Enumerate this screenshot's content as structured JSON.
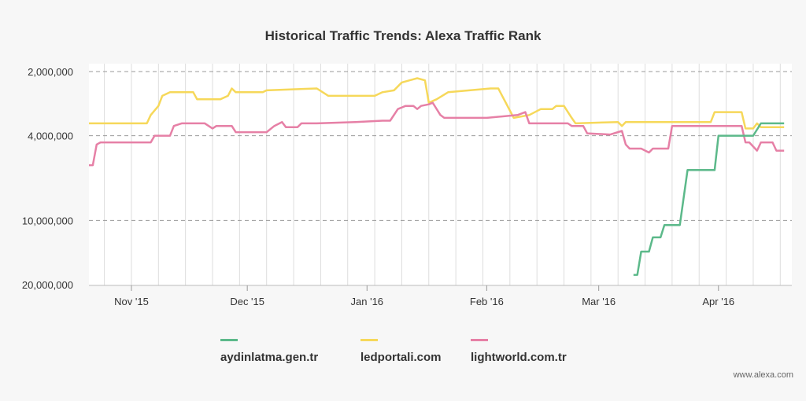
{
  "chart_data": {
    "type": "line",
    "title": "Historical Traffic Trends: Alexa Traffic Rank",
    "y_scale": "log",
    "y_reversed": true,
    "ylim": [
      2000000,
      20000000
    ],
    "y_ticks": [
      {
        "value": 2000000,
        "label": "2,000,000"
      },
      {
        "value": 4000000,
        "label": "4,000,000"
      },
      {
        "value": 10000000,
        "label": "10,000,000"
      },
      {
        "value": 20000000,
        "label": "20,000,000"
      }
    ],
    "xlim": [
      "2015-10-21",
      "2016-04-20"
    ],
    "x_ticks": [
      {
        "date": "2015-11-01",
        "label": "Nov '15"
      },
      {
        "date": "2015-12-01",
        "label": "Dec '15"
      },
      {
        "date": "2016-01-01",
        "label": "Jan '16"
      },
      {
        "date": "2016-02-01",
        "label": "Feb '16"
      },
      {
        "date": "2016-03-01",
        "label": "Mar '16"
      },
      {
        "date": "2016-04-01",
        "label": "Apr '16"
      }
    ],
    "grid": "vertical weekly lines, dashed horizontal lines at y ticks",
    "legend_position": "bottom",
    "series": [
      {
        "name": "aydinlatma.gen.tr",
        "color": "#5cb98a",
        "points": [
          [
            "2016-03-10",
            18000000
          ],
          [
            "2016-03-11",
            18000000
          ],
          [
            "2016-03-12",
            14000000
          ],
          [
            "2016-03-14",
            14000000
          ],
          [
            "2016-03-15",
            12000000
          ],
          [
            "2016-03-17",
            12000000
          ],
          [
            "2016-03-18",
            10500000
          ],
          [
            "2016-03-22",
            10500000
          ],
          [
            "2016-03-24",
            5800000
          ],
          [
            "2016-03-31",
            5800000
          ],
          [
            "2016-04-01",
            4000000
          ],
          [
            "2016-04-10",
            4000000
          ],
          [
            "2016-04-12",
            3500000
          ],
          [
            "2016-04-18",
            3500000
          ]
        ]
      },
      {
        "name": "ledportali.com",
        "color": "#f6d85a",
        "points": [
          [
            "2015-10-21",
            3500000
          ],
          [
            "2015-10-28",
            3500000
          ],
          [
            "2015-11-03",
            3500000
          ],
          [
            "2015-11-05",
            3500000
          ],
          [
            "2015-11-06",
            3200000
          ],
          [
            "2015-11-08",
            2900000
          ],
          [
            "2015-11-09",
            2600000
          ],
          [
            "2015-11-11",
            2500000
          ],
          [
            "2015-11-17",
            2500000
          ],
          [
            "2015-11-18",
            2700000
          ],
          [
            "2015-11-24",
            2700000
          ],
          [
            "2015-11-26",
            2600000
          ],
          [
            "2015-11-27",
            2400000
          ],
          [
            "2015-11-28",
            2500000
          ],
          [
            "2015-12-05",
            2500000
          ],
          [
            "2015-12-06",
            2450000
          ],
          [
            "2015-12-19",
            2400000
          ],
          [
            "2015-12-22",
            2600000
          ],
          [
            "2015-12-29",
            2600000
          ],
          [
            "2016-01-03",
            2600000
          ],
          [
            "2016-01-05",
            2500000
          ],
          [
            "2016-01-08",
            2450000
          ],
          [
            "2016-01-10",
            2250000
          ],
          [
            "2016-01-12",
            2200000
          ],
          [
            "2016-01-14",
            2150000
          ],
          [
            "2016-01-16",
            2200000
          ],
          [
            "2016-01-17",
            2800000
          ],
          [
            "2016-01-19",
            2700000
          ],
          [
            "2016-01-22",
            2500000
          ],
          [
            "2016-02-02",
            2400000
          ],
          [
            "2016-02-04",
            2400000
          ],
          [
            "2016-02-05",
            2600000
          ],
          [
            "2016-02-08",
            3300000
          ],
          [
            "2016-02-12",
            3200000
          ],
          [
            "2016-02-15",
            3000000
          ],
          [
            "2016-02-18",
            3000000
          ],
          [
            "2016-02-19",
            2900000
          ],
          [
            "2016-02-21",
            2900000
          ],
          [
            "2016-02-23",
            3300000
          ],
          [
            "2016-02-24",
            3500000
          ],
          [
            "2016-03-06",
            3450000
          ],
          [
            "2016-03-07",
            3600000
          ],
          [
            "2016-03-08",
            3450000
          ],
          [
            "2016-03-30",
            3450000
          ],
          [
            "2016-03-31",
            3100000
          ],
          [
            "2016-04-07",
            3100000
          ],
          [
            "2016-04-08",
            3700000
          ],
          [
            "2016-04-10",
            3700000
          ],
          [
            "2016-04-11",
            3500000
          ],
          [
            "2016-04-12",
            3650000
          ],
          [
            "2016-04-18",
            3650000
          ]
        ]
      },
      {
        "name": "lightworld.com.tr",
        "color": "#e680a6",
        "points": [
          [
            "2015-10-21",
            5500000
          ],
          [
            "2015-10-22",
            5500000
          ],
          [
            "2015-10-23",
            4400000
          ],
          [
            "2015-10-24",
            4300000
          ],
          [
            "2015-11-06",
            4300000
          ],
          [
            "2015-11-07",
            4000000
          ],
          [
            "2015-11-11",
            4000000
          ],
          [
            "2015-11-12",
            3600000
          ],
          [
            "2015-11-14",
            3500000
          ],
          [
            "2015-11-20",
            3500000
          ],
          [
            "2015-11-22",
            3700000
          ],
          [
            "2015-11-23",
            3600000
          ],
          [
            "2015-11-27",
            3600000
          ],
          [
            "2015-11-28",
            3850000
          ],
          [
            "2015-12-06",
            3850000
          ],
          [
            "2015-12-08",
            3600000
          ],
          [
            "2015-12-10",
            3450000
          ],
          [
            "2015-12-11",
            3650000
          ],
          [
            "2015-12-14",
            3650000
          ],
          [
            "2015-12-15",
            3500000
          ],
          [
            "2015-12-19",
            3500000
          ],
          [
            "2015-12-29",
            3450000
          ],
          [
            "2016-01-05",
            3400000
          ],
          [
            "2016-01-07",
            3400000
          ],
          [
            "2016-01-09",
            3000000
          ],
          [
            "2016-01-11",
            2900000
          ],
          [
            "2016-01-13",
            2900000
          ],
          [
            "2016-01-14",
            3000000
          ],
          [
            "2016-01-15",
            2900000
          ],
          [
            "2016-01-17",
            2850000
          ],
          [
            "2016-01-18",
            2800000
          ],
          [
            "2016-01-20",
            3200000
          ],
          [
            "2016-01-21",
            3300000
          ],
          [
            "2016-02-01",
            3300000
          ],
          [
            "2016-02-09",
            3200000
          ],
          [
            "2016-02-11",
            3100000
          ],
          [
            "2016-02-12",
            3500000
          ],
          [
            "2016-02-22",
            3500000
          ],
          [
            "2016-02-23",
            3600000
          ],
          [
            "2016-02-26",
            3600000
          ],
          [
            "2016-02-27",
            3900000
          ],
          [
            "2016-03-04",
            3950000
          ],
          [
            "2016-03-07",
            3800000
          ],
          [
            "2016-03-08",
            4400000
          ],
          [
            "2016-03-09",
            4600000
          ],
          [
            "2016-03-12",
            4600000
          ],
          [
            "2016-03-14",
            4800000
          ],
          [
            "2016-03-15",
            4600000
          ],
          [
            "2016-03-19",
            4600000
          ],
          [
            "2016-03-20",
            3600000
          ],
          [
            "2016-04-07",
            3600000
          ],
          [
            "2016-04-08",
            4300000
          ],
          [
            "2016-04-09",
            4300000
          ],
          [
            "2016-04-11",
            4700000
          ],
          [
            "2016-04-12",
            4300000
          ],
          [
            "2016-04-15",
            4300000
          ],
          [
            "2016-04-16",
            4700000
          ],
          [
            "2016-04-18",
            4700000
          ]
        ]
      }
    ]
  },
  "legend": {
    "items": [
      {
        "label": "aydinlatma.gen.tr",
        "color": "#5cb98a"
      },
      {
        "label": "ledportali.com",
        "color": "#f6d85a"
      },
      {
        "label": "lightworld.com.tr",
        "color": "#e680a6"
      }
    ]
  },
  "footer": {
    "watermark": "www.alexa.com"
  }
}
